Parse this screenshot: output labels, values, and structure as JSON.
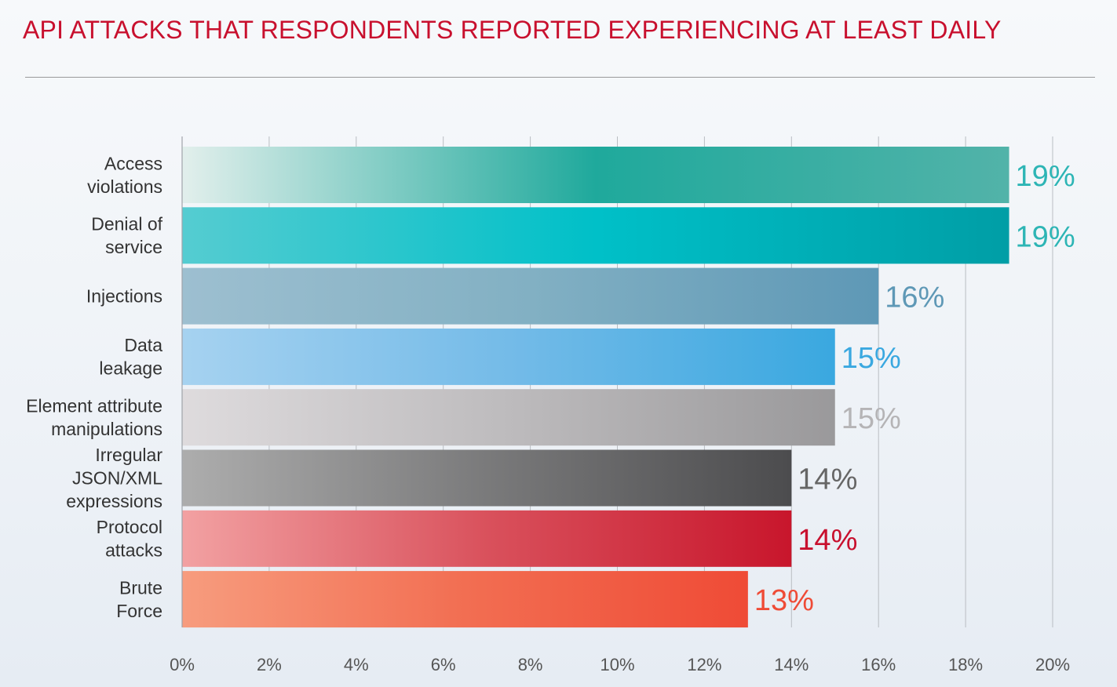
{
  "chart_data": {
    "type": "bar",
    "orientation": "horizontal",
    "title": "API ATTACKS THAT RESPONDENTS REPORTED EXPERIENCING AT LEAST DAILY",
    "xlabel": "",
    "ylabel": "",
    "xlim": [
      0,
      20
    ],
    "ticks": [
      0,
      2,
      4,
      6,
      8,
      10,
      12,
      14,
      16,
      18,
      20
    ],
    "tick_labels": [
      "0%",
      "2%",
      "4%",
      "6%",
      "8%",
      "10%",
      "12%",
      "14%",
      "16%",
      "18%",
      "20%"
    ],
    "grid": true,
    "categories": [
      [
        "Access",
        "violations"
      ],
      [
        "Denial of",
        "service"
      ],
      [
        "Injections"
      ],
      [
        "Data",
        "leakage"
      ],
      [
        "Element attribute",
        "manipulations"
      ],
      [
        "Irregular",
        "JSON/XML",
        "expressions"
      ],
      [
        "Protocol",
        "attacks"
      ],
      [
        "Brute",
        "Force"
      ]
    ],
    "values": [
      19,
      19,
      16,
      15,
      15,
      14,
      14,
      13
    ],
    "value_labels": [
      "19%",
      "19%",
      "16%",
      "15%",
      "15%",
      "14%",
      "14%",
      "13%"
    ],
    "bar_colors": [
      [
        "#e2efec",
        "#1fa99c",
        "#52b3a9"
      ],
      [
        "#55ccd1",
        "#00c0c8",
        "#009ea6"
      ],
      [
        "#9dbfd0",
        "#82b0c3",
        "#5e98b6"
      ],
      [
        "#a6d2f0",
        "#74bbe8",
        "#3aa8e0"
      ],
      [
        "#dedbdd",
        "#bdbbbd",
        "#9a999b"
      ],
      [
        "#adadad",
        "#7a7a7b",
        "#4c4c4e"
      ],
      [
        "#f2a1a2",
        "#d9515c",
        "#c8162c"
      ],
      [
        "#f79c7e",
        "#f26e52",
        "#ef4b36"
      ]
    ],
    "label_colors": [
      "#2db5b5",
      "#2db5b5",
      "#5e98b6",
      "#3aa8e0",
      "#b5b4b6",
      "#666666",
      "#c8102e",
      "#ef4b36"
    ]
  }
}
